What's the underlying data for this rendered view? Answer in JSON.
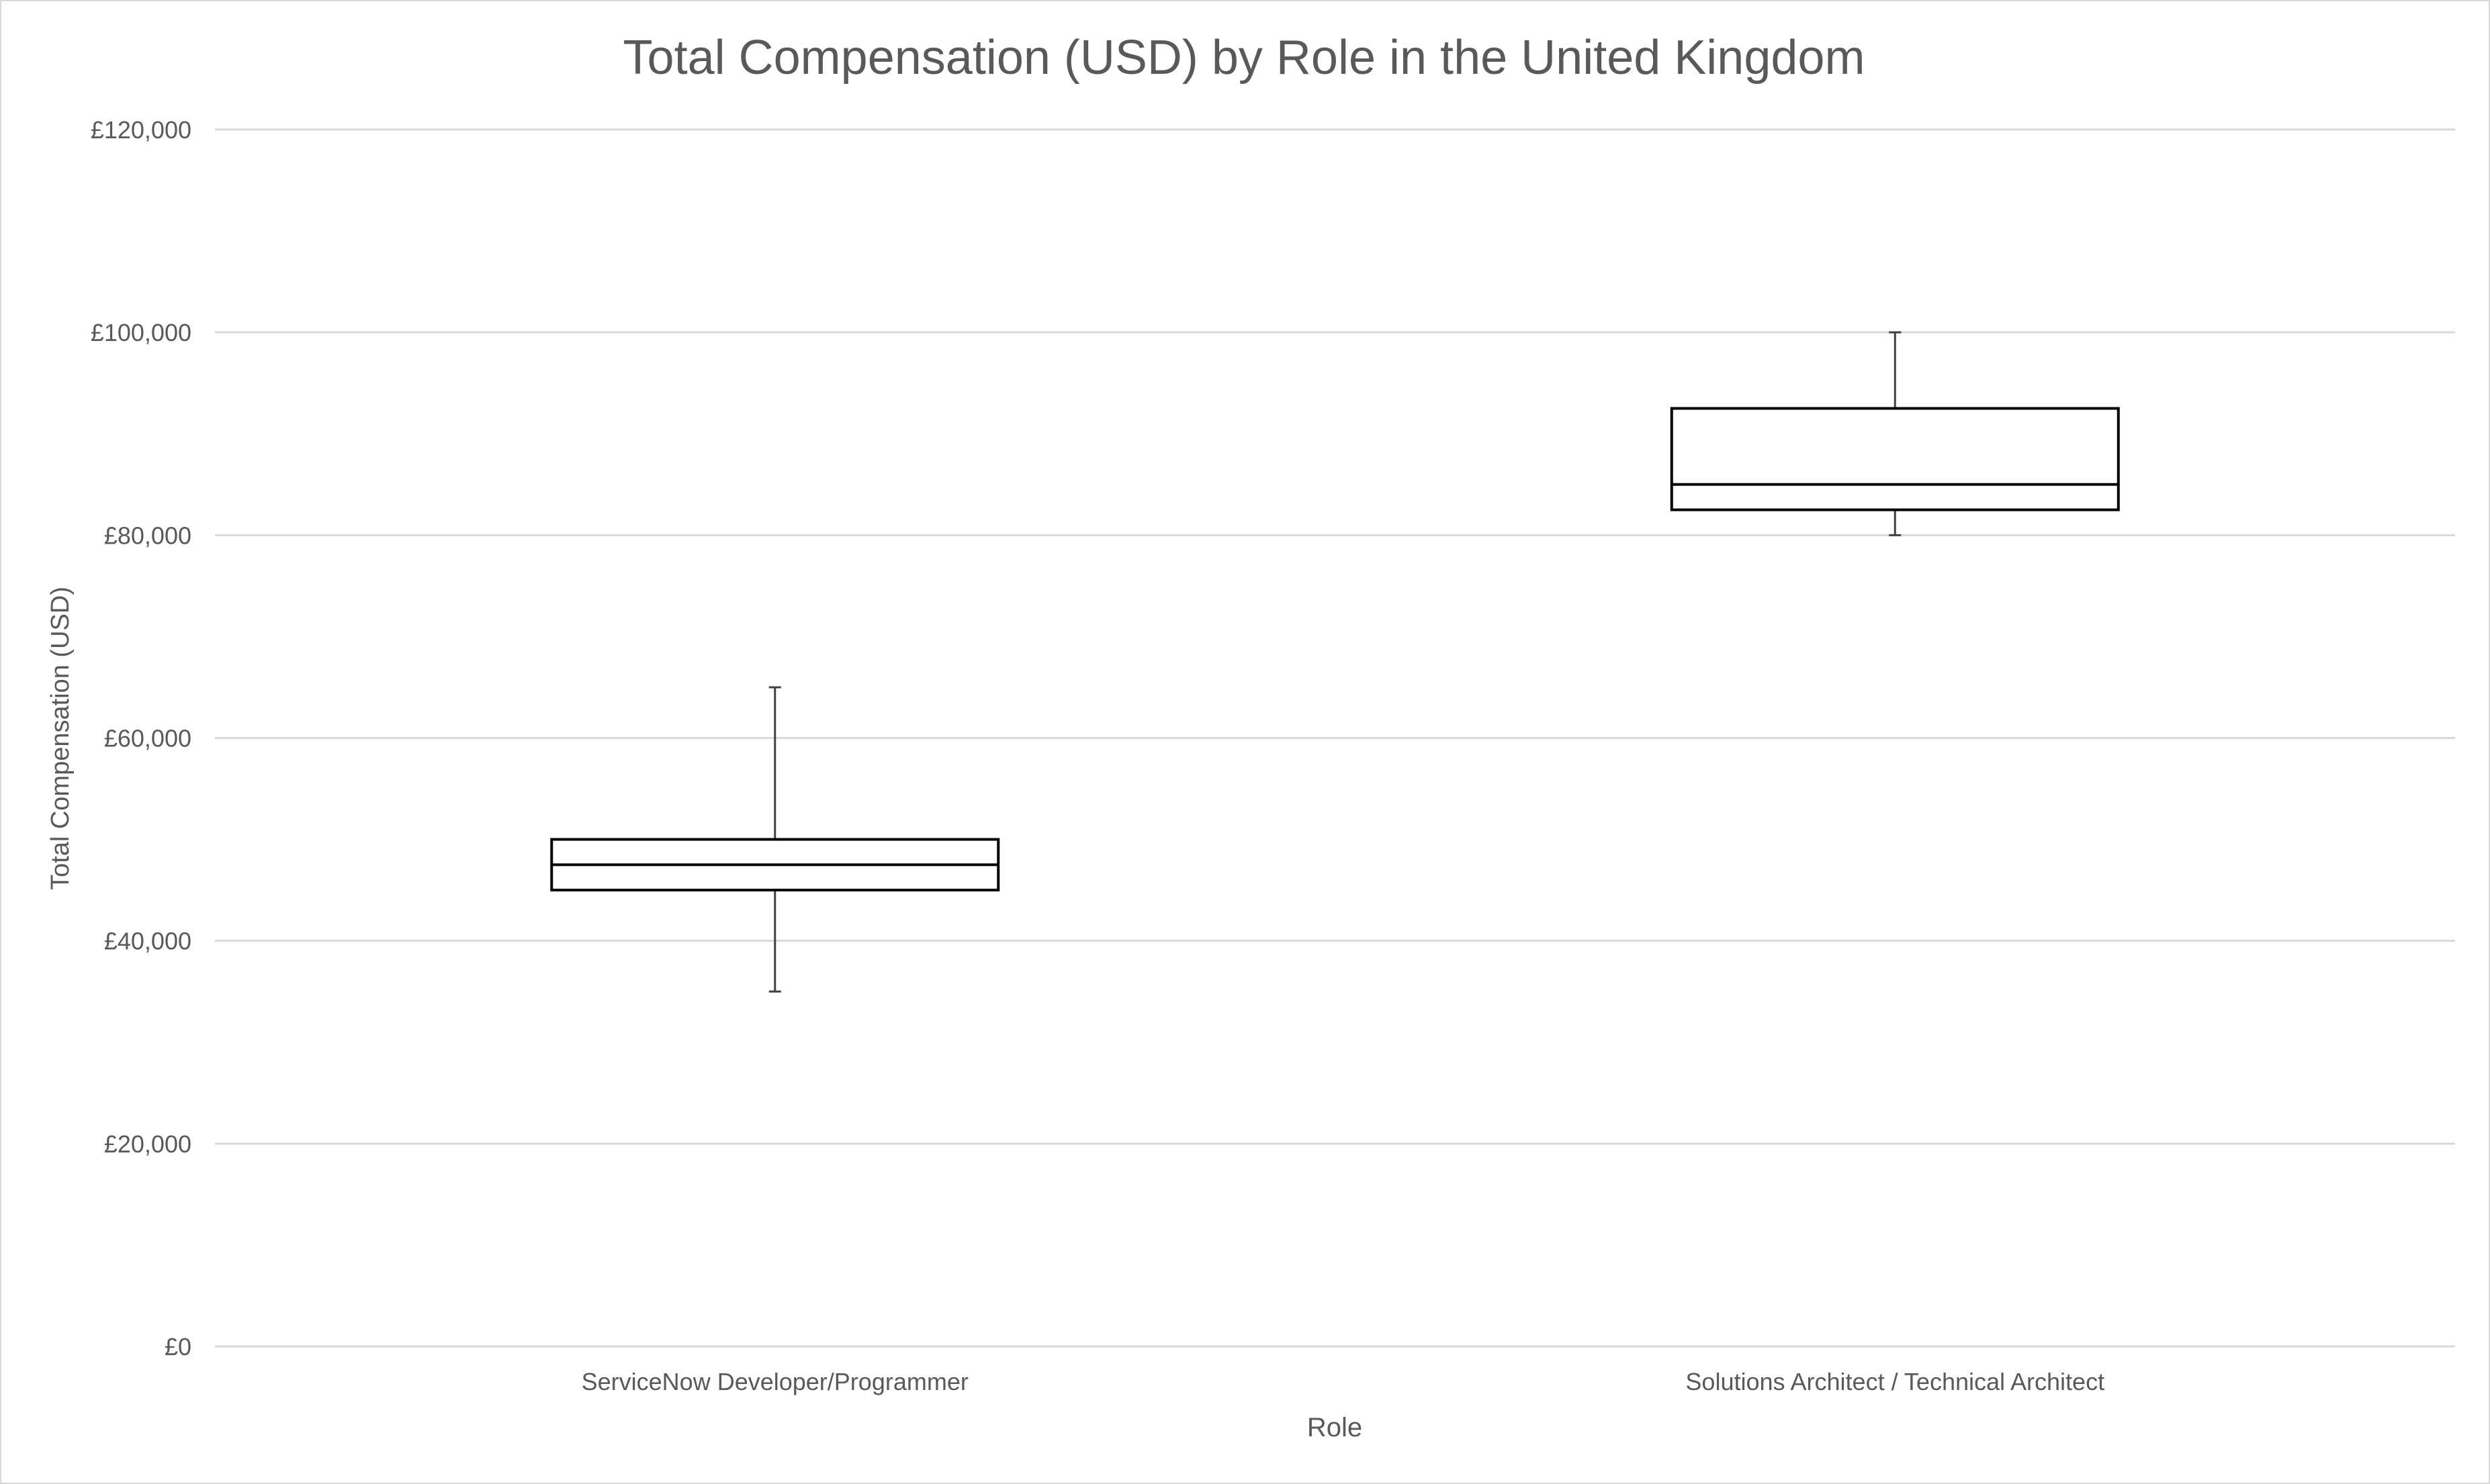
{
  "chart_data": {
    "type": "box",
    "title": "Total Compensation (USD) by Role in the United Kingdom",
    "xlabel": "Role",
    "ylabel": "Total Compensation (USD)",
    "ylim": [
      0,
      120000
    ],
    "y_ticks": [
      {
        "value": 0,
        "label": "£0"
      },
      {
        "value": 20000,
        "label": "£20,000"
      },
      {
        "value": 40000,
        "label": "£40,000"
      },
      {
        "value": 60000,
        "label": "£60,000"
      },
      {
        "value": 80000,
        "label": "£80,000"
      },
      {
        "value": 100000,
        "label": "£100,000"
      },
      {
        "value": 120000,
        "label": "£120,000"
      }
    ],
    "grid": true,
    "legend": "none",
    "categories": [
      "ServiceNow Developer/Programmer",
      "Solutions Architect / Technical Architect"
    ],
    "boxes": [
      {
        "category": "ServiceNow Developer/Programmer",
        "min": 35000,
        "q1": 45000,
        "median": 47500,
        "q3": 50000,
        "max": 65000
      },
      {
        "category": "Solutions Architect / Technical Architect",
        "min": 80000,
        "q1": 82500,
        "median": 85000,
        "q3": 92500,
        "max": 100000
      }
    ],
    "colors": {
      "box_stroke": "#000000",
      "whisker": "#404040",
      "grid": "#d9d9d9",
      "text": "#595959"
    }
  }
}
